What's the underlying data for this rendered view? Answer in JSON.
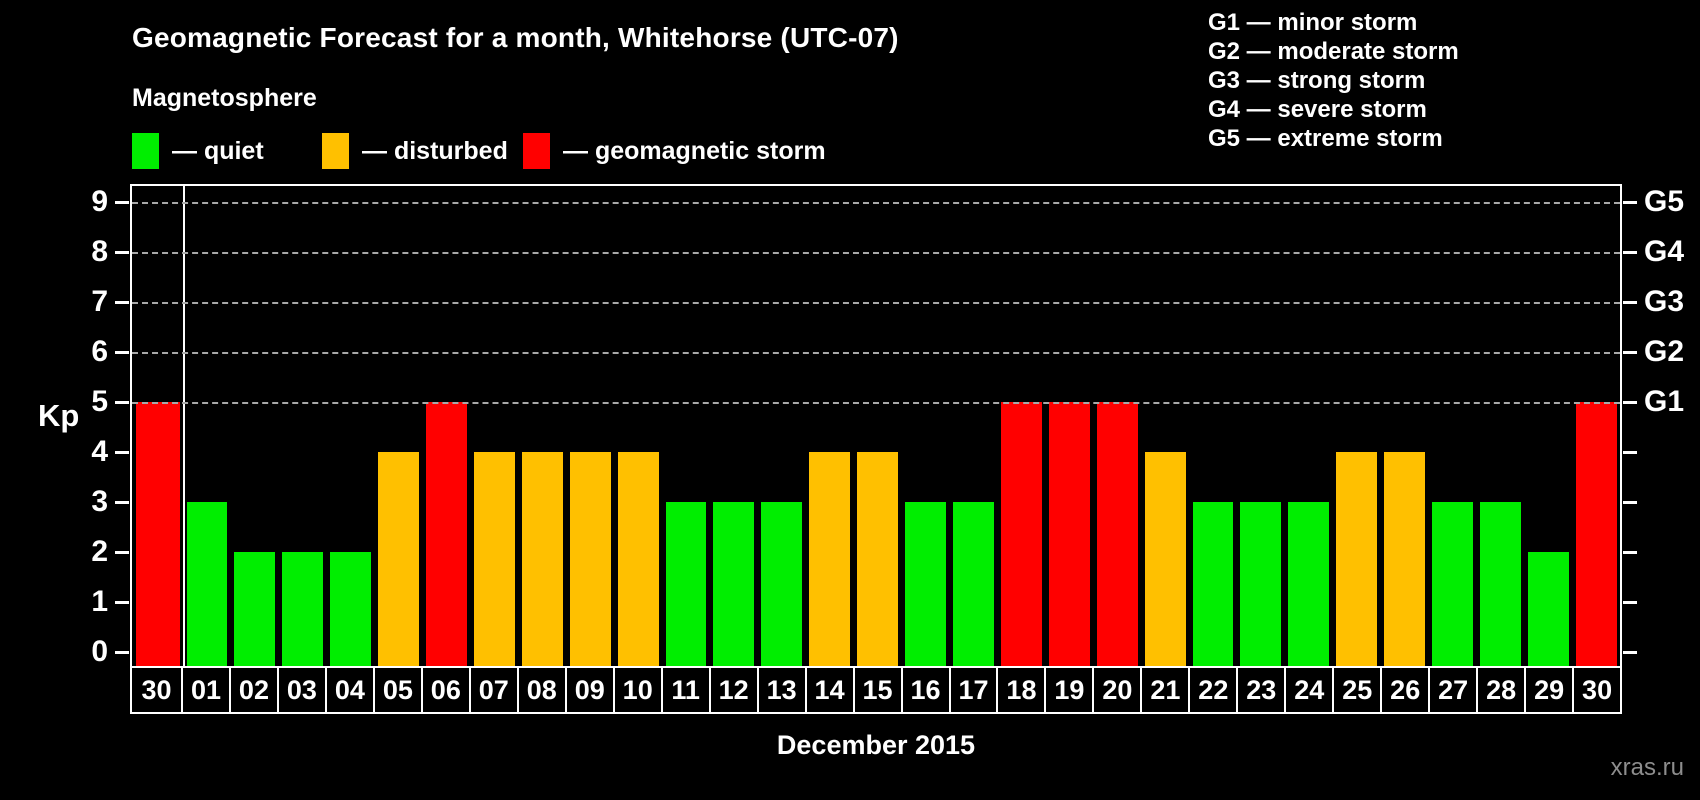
{
  "header": {
    "title": "Geomagnetic Forecast for a month, Whitehorse (UTC-07)",
    "subtitle": "Magnetosphere"
  },
  "legend": {
    "items": [
      {
        "state": "quiet",
        "label": "— quiet"
      },
      {
        "state": "disturbed",
        "label": "— disturbed"
      },
      {
        "state": "storm",
        "label": "— geomagnetic storm"
      }
    ],
    "positions_x": [
      132,
      322,
      523
    ]
  },
  "g_legend": {
    "lines": [
      "G1 — minor storm",
      "G2 — moderate storm",
      "G3 — strong storm",
      "G4 — severe storm",
      "G5 — extreme storm"
    ]
  },
  "colors": {
    "quiet": "#00ee00",
    "disturbed": "#ffc000",
    "storm": "#ff0000",
    "grid": "#a8a8a8",
    "axis": "#ffffff",
    "watermark": "#8d8d8d"
  },
  "axes": {
    "y_label": "Kp",
    "y_ticks": [
      0,
      1,
      2,
      3,
      4,
      5,
      6,
      7,
      8,
      9
    ],
    "right_g_labels": [
      {
        "text": "G1",
        "kp": 5
      },
      {
        "text": "G2",
        "kp": 6
      },
      {
        "text": "G3",
        "kp": 7
      },
      {
        "text": "G4",
        "kp": 8
      },
      {
        "text": "G5",
        "kp": 9
      }
    ],
    "x_axis_title": "December 2015"
  },
  "watermark": "xras.ru",
  "chart_data": {
    "type": "bar",
    "title": "Geomagnetic Forecast for a month, Whitehorse (UTC-07)",
    "categories": [
      "30",
      "01",
      "02",
      "03",
      "04",
      "05",
      "06",
      "07",
      "08",
      "09",
      "10",
      "11",
      "12",
      "13",
      "14",
      "15",
      "16",
      "17",
      "18",
      "19",
      "20",
      "21",
      "22",
      "23",
      "24",
      "25",
      "26",
      "27",
      "28",
      "29",
      "30"
    ],
    "values": [
      5,
      3,
      2,
      2,
      2,
      4,
      5,
      4,
      4,
      4,
      4,
      3,
      3,
      3,
      4,
      4,
      3,
      3,
      5,
      5,
      5,
      4,
      3,
      3,
      3,
      4,
      4,
      3,
      3,
      2,
      5
    ],
    "states": [
      "storm",
      "quiet",
      "quiet",
      "quiet",
      "quiet",
      "disturbed",
      "storm",
      "disturbed",
      "disturbed",
      "disturbed",
      "disturbed",
      "quiet",
      "quiet",
      "quiet",
      "disturbed",
      "disturbed",
      "quiet",
      "quiet",
      "storm",
      "storm",
      "storm",
      "disturbed",
      "quiet",
      "quiet",
      "quiet",
      "disturbed",
      "disturbed",
      "quiet",
      "quiet",
      "quiet",
      "storm"
    ],
    "prev_month_first_category": true,
    "xlabel": "December 2015",
    "ylabel": "Kp",
    "ylim": [
      0,
      9.4
    ],
    "grid_values": [
      5,
      6,
      7,
      8,
      9
    ],
    "legend_position": "top-left",
    "grid": "dashed horizontal at G-levels only"
  }
}
